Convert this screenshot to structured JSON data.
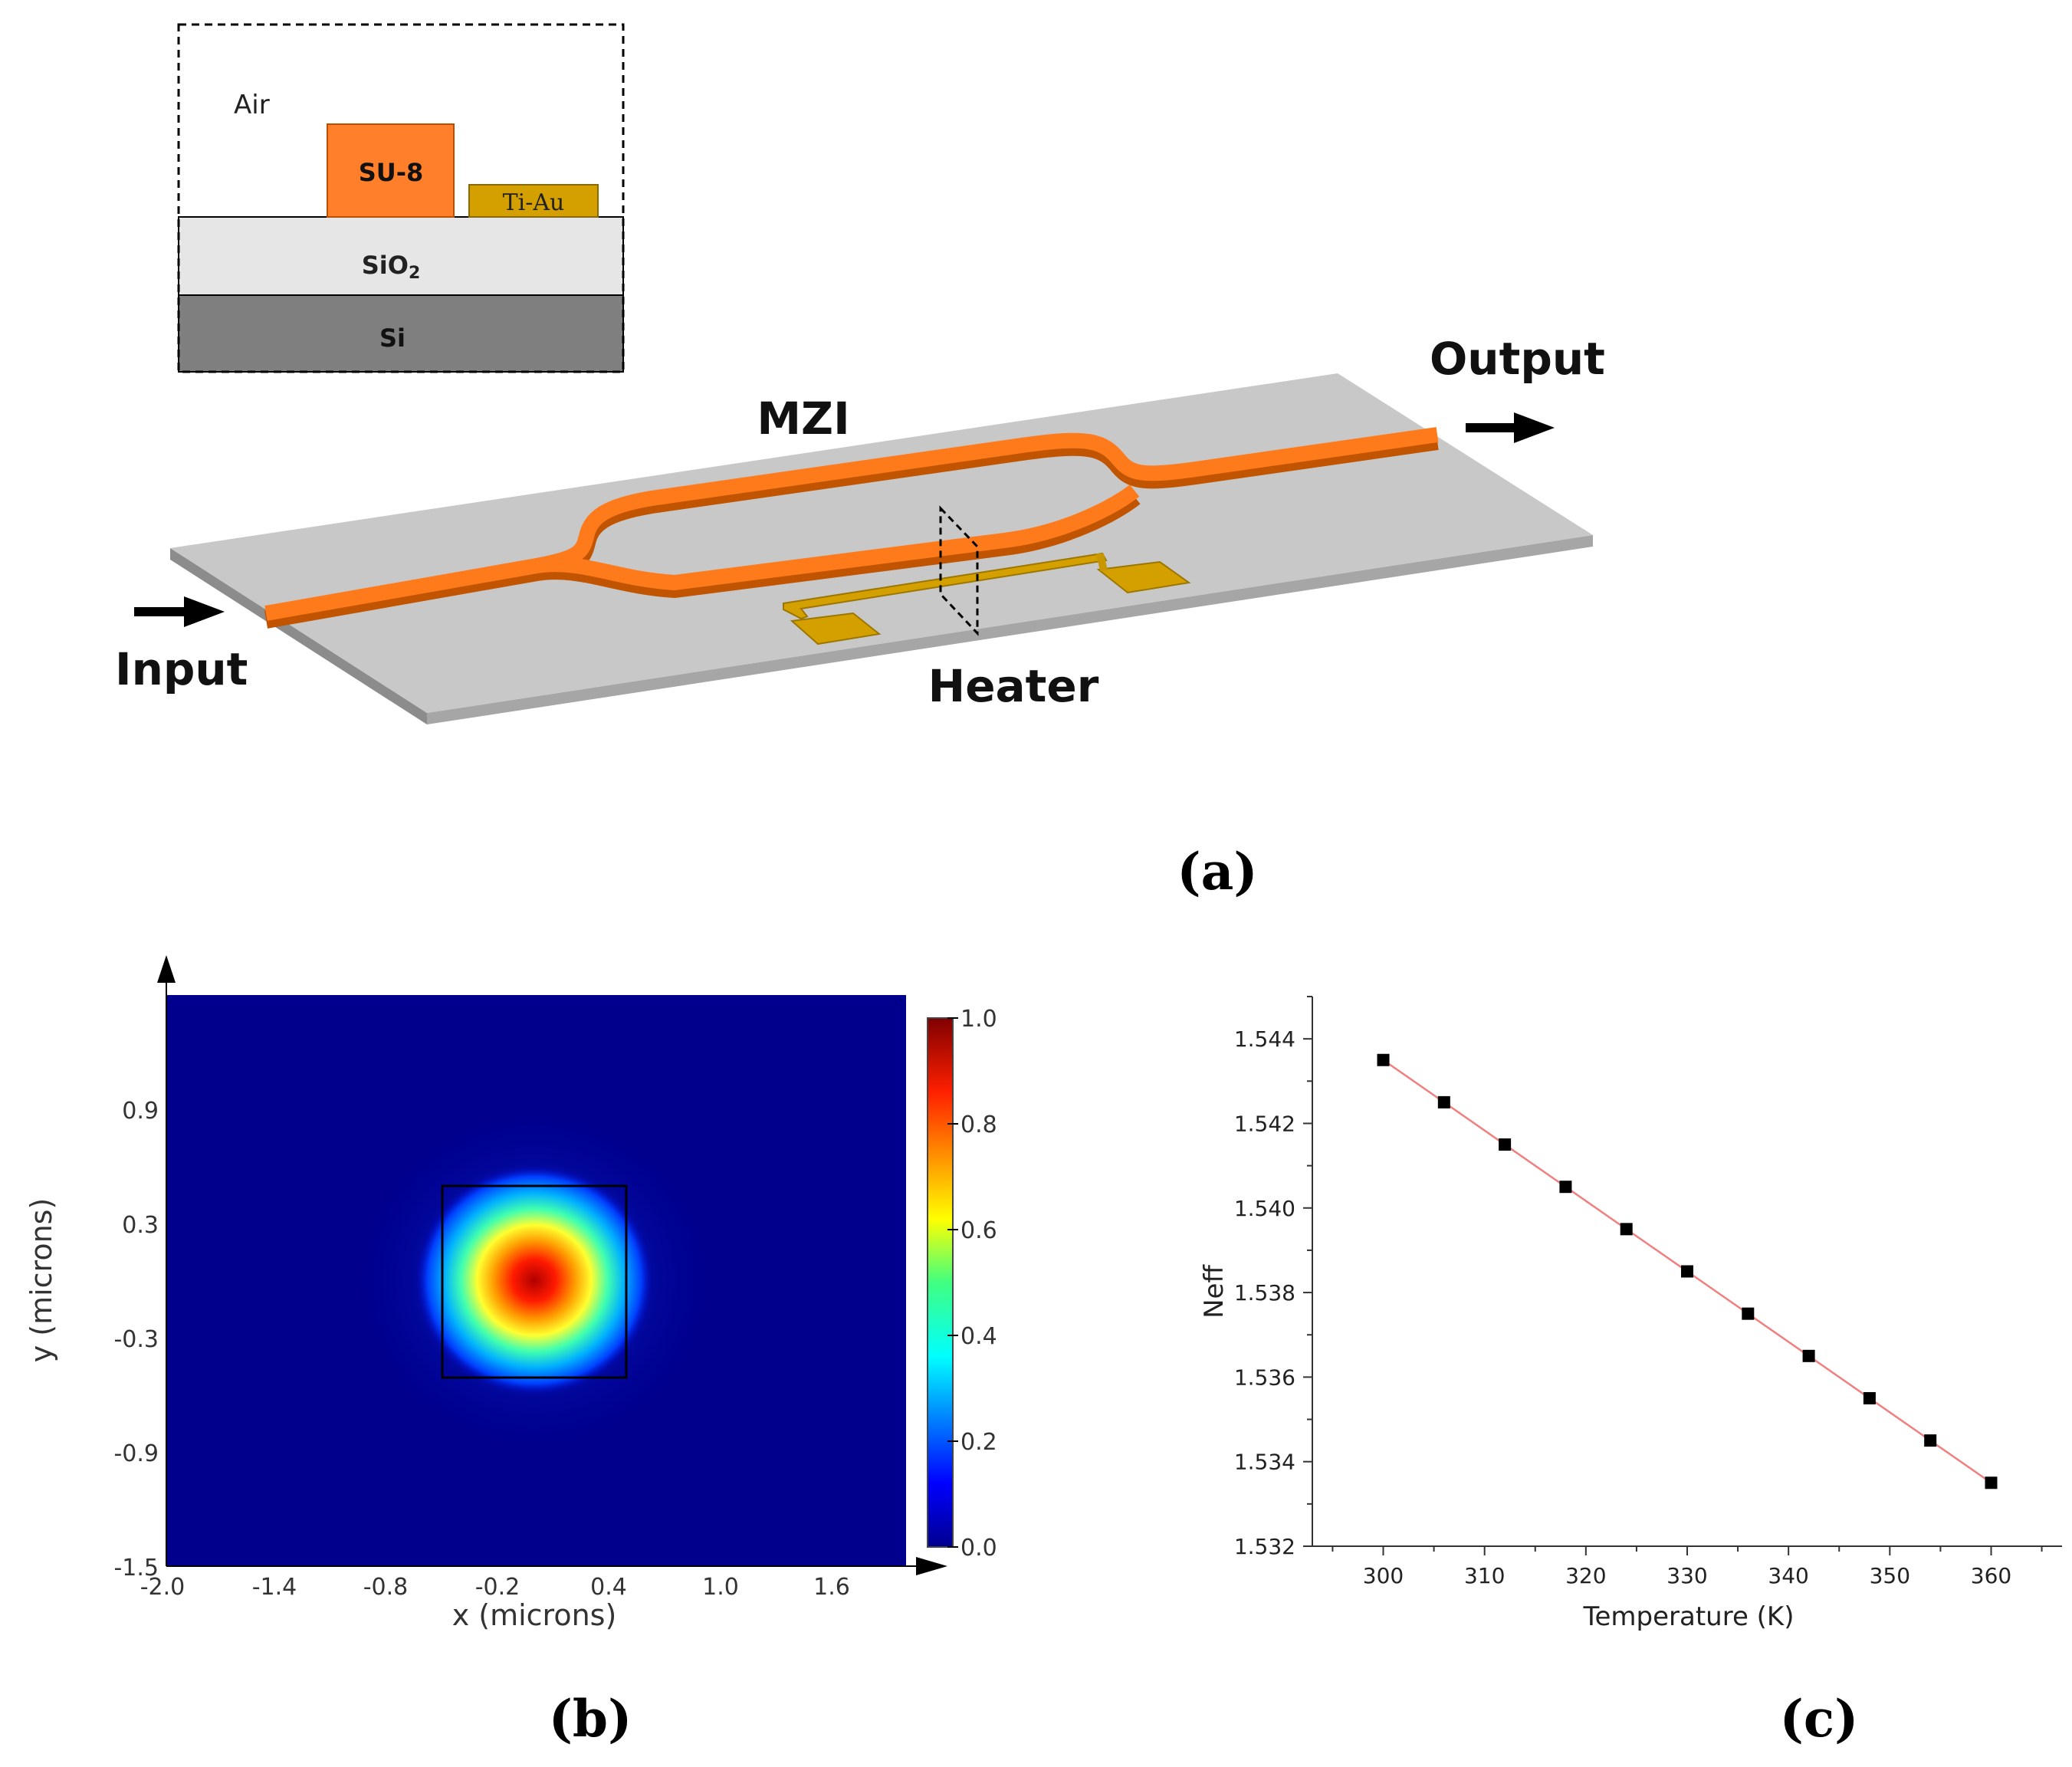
{
  "panel_a": {
    "caption": "(a)",
    "cross_section": {
      "air_label": "Air",
      "su8_label": "SU-8",
      "tiau_label": "Ti-Au",
      "sio2_label": "SiO",
      "sio2_subscript": "2",
      "si_label": "Si"
    },
    "labels": {
      "mzi": "MZI",
      "output": "Output",
      "input": "Input",
      "heater": "Heater"
    },
    "colors": {
      "waveguide": "#ff7a1a",
      "waveguide_side": "#d65e00",
      "substrate_top": "#c8c8c8",
      "substrate_edge": "#8c8c8c",
      "heater": "#d4a000",
      "sio2": "#e6e6e6",
      "si": "#7f7f7f"
    }
  },
  "panel_b": {
    "caption": "(b)",
    "colorbar_ticks": [
      "1.0",
      "0.8",
      "0.6",
      "0.4",
      "0.2",
      "0.0"
    ],
    "chart_data": {
      "type": "heatmap",
      "title": "",
      "xlabel": "x (microns)",
      "ylabel": "y (microns)",
      "x_ticks": [
        "-2.0",
        "-1.4",
        "-0.8",
        "-0.2",
        "0.4",
        "1.0",
        "1.6"
      ],
      "y_ticks": [
        "0.9",
        "0.3",
        "-0.3",
        "-0.9",
        "-1.5"
      ],
      "xlim": [
        -2.0,
        2.0
      ],
      "ylim": [
        -1.5,
        1.5
      ],
      "mode_center": [
        -0.05,
        0.0
      ],
      "core_box_x": [
        -0.55,
        0.45
      ],
      "core_box_y": [
        -0.5,
        0.5
      ],
      "colorbar_range": [
        0.0,
        1.0
      ]
    }
  },
  "panel_c": {
    "caption": "(c)",
    "chart_data": {
      "type": "scatter",
      "title": "",
      "xlabel": "Temperature (K)",
      "ylabel": "Neff",
      "x": [
        300,
        306,
        312,
        318,
        324,
        330,
        336,
        342,
        348,
        354,
        360
      ],
      "y": [
        1.5435,
        1.5425,
        1.5415,
        1.5405,
        1.5395,
        1.5385,
        1.5375,
        1.5365,
        1.5355,
        1.5345,
        1.5335
      ],
      "xlim": [
        293,
        367
      ],
      "ylim": [
        1.532,
        1.545
      ],
      "x_ticks": [
        300,
        310,
        320,
        330,
        340,
        350,
        360
      ],
      "y_ticks": [
        "1.532",
        "1.534",
        "1.536",
        "1.538",
        "1.540",
        "1.542",
        "1.544"
      ],
      "fit_line": true,
      "marker_color": "#000000",
      "line_color": "#f08080"
    }
  }
}
